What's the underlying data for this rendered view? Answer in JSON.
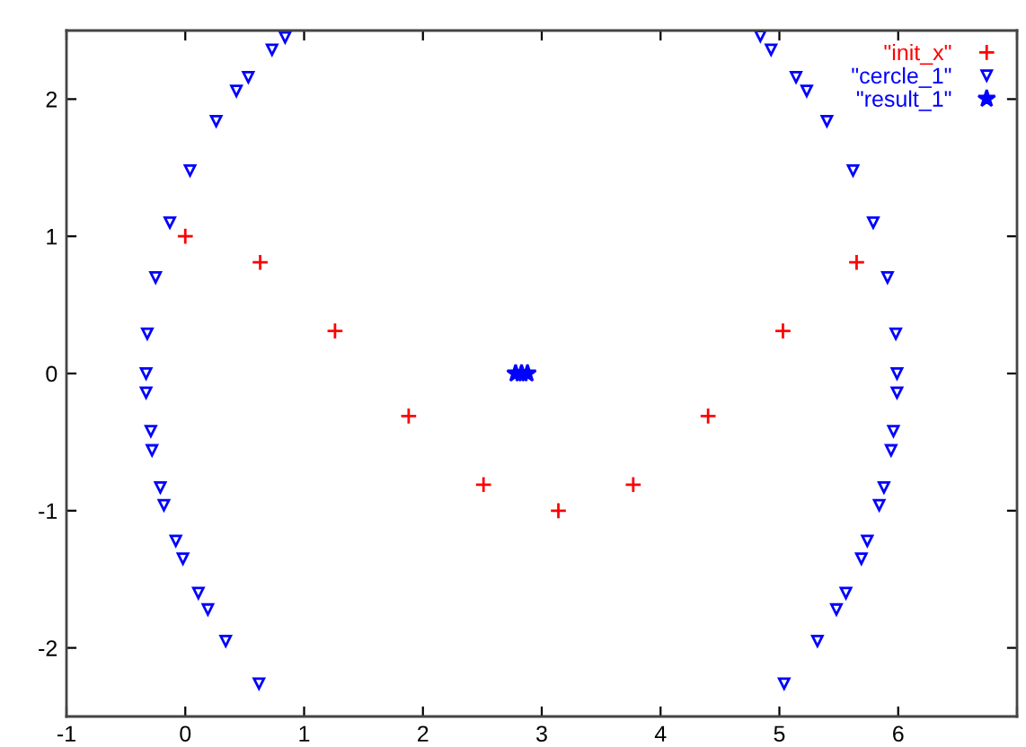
{
  "chart_data": {
    "type": "scatter",
    "xlim": [
      -1,
      7
    ],
    "ylim": [
      -2.5,
      2.5
    ],
    "xticks": [
      -1,
      0,
      1,
      2,
      3,
      4,
      5,
      6,
      {
        "value": 7,
        "label": null
      }
    ],
    "yticks": [
      -2,
      -1,
      0,
      1,
      2
    ],
    "grid": false,
    "legend": "top right",
    "series": [
      {
        "name": "\"init_x\"",
        "color": "#ff0000",
        "marker": "cross",
        "x": [
          0,
          0.63,
          1.26,
          1.88,
          2.51,
          3.14,
          3.77,
          4.4,
          5.03,
          5.65
        ],
        "values": [
          1,
          0.81,
          0.31,
          -0.31,
          -0.81,
          -1,
          -0.81,
          -0.31,
          0.31,
          0.81
        ]
      },
      {
        "name": "\"cercle_1\"",
        "color": "#0000ff",
        "marker": "triangle",
        "x": [
          0.84,
          0.73,
          0.53,
          0.43,
          0.26,
          0.04,
          -0.13,
          -0.25,
          -0.32,
          -0.33,
          -0.33,
          -0.29,
          -0.28,
          -0.21,
          -0.18,
          -0.08,
          -0.02,
          0.11,
          0.19,
          0.34,
          0.62,
          4.84,
          4.93,
          5.14,
          5.23,
          5.4,
          5.62,
          5.79,
          5.91,
          5.98,
          5.99,
          5.99,
          5.96,
          5.94,
          5.88,
          5.84,
          5.74,
          5.69,
          5.56,
          5.48,
          5.32,
          5.04
        ],
        "values": [
          2.45,
          2.36,
          2.16,
          2.06,
          1.84,
          1.48,
          1.1,
          0.7,
          0.29,
          0.0,
          -0.14,
          -0.42,
          -0.56,
          -0.83,
          -0.96,
          -1.22,
          -1.35,
          -1.6,
          -1.72,
          -1.95,
          -2.26,
          2.46,
          2.36,
          2.16,
          2.06,
          1.84,
          1.48,
          1.1,
          0.7,
          0.29,
          0.0,
          -0.14,
          -0.42,
          -0.56,
          -0.83,
          -0.96,
          -1.22,
          -1.35,
          -1.6,
          -1.72,
          -1.95,
          -2.26
        ]
      },
      {
        "name": "\"result_1\"",
        "color": "#0000ff",
        "marker": "star",
        "x": [
          2.78,
          2.83,
          2.88
        ],
        "values": [
          0,
          0,
          0
        ]
      }
    ]
  }
}
